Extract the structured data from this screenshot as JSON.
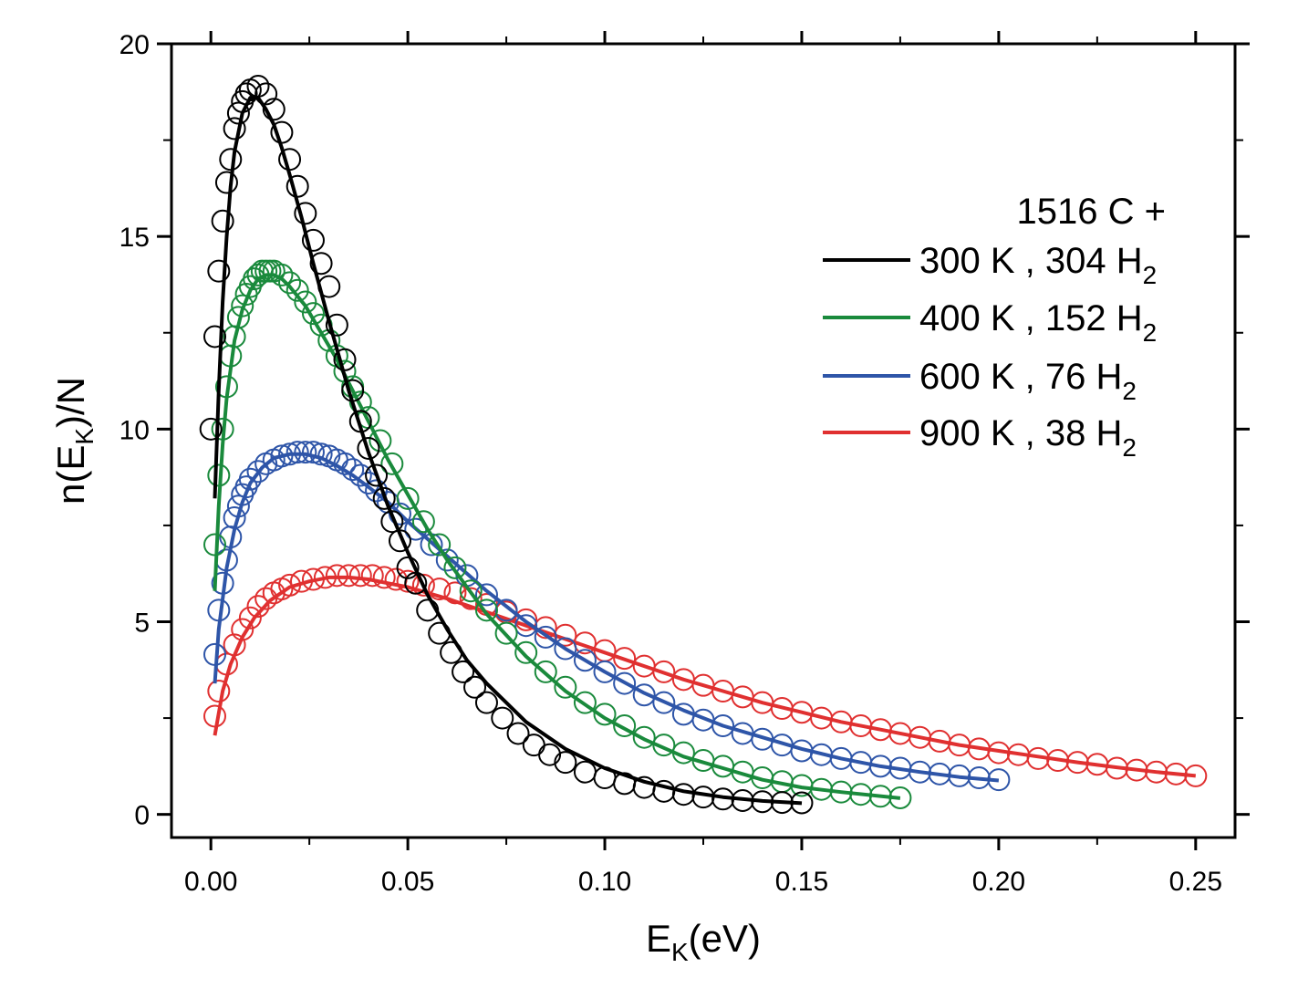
{
  "chart_data": {
    "type": "scatter",
    "title": "",
    "xlabel": {
      "main": "E",
      "sub": "K",
      "rest": "(eV)"
    },
    "ylabel": {
      "pre": "n(E",
      "sub": "K",
      "post": ")/N"
    },
    "xlim": [
      -0.01,
      0.26
    ],
    "ylim": [
      -0.6,
      20
    ],
    "xticks": [
      0.0,
      0.05,
      0.1,
      0.15,
      0.2,
      0.25
    ],
    "xtick_labels": [
      "0.00",
      "0.05",
      "0.10",
      "0.15",
      "0.20",
      "0.25"
    ],
    "yticks": [
      0,
      5,
      10,
      15,
      20
    ],
    "ytick_labels": [
      "0",
      "5",
      "10",
      "15",
      "20"
    ],
    "grid": false,
    "legend_placement": "top-right",
    "legend_title": "1516 C +",
    "series": [
      {
        "name": "300 K , 304 H",
        "name_sub": "2",
        "color": "#000000",
        "x": [
          0.0,
          0.001,
          0.002,
          0.003,
          0.004,
          0.005,
          0.006,
          0.007,
          0.008,
          0.009,
          0.01,
          0.012,
          0.014,
          0.016,
          0.018,
          0.02,
          0.022,
          0.024,
          0.026,
          0.028,
          0.03,
          0.032,
          0.034,
          0.036,
          0.038,
          0.04,
          0.042,
          0.044,
          0.046,
          0.048,
          0.05,
          0.052,
          0.055,
          0.058,
          0.061,
          0.064,
          0.067,
          0.07,
          0.074,
          0.078,
          0.082,
          0.086,
          0.09,
          0.095,
          0.1,
          0.105,
          0.11,
          0.115,
          0.12,
          0.125,
          0.13,
          0.135,
          0.14,
          0.145,
          0.15
        ],
        "y": [
          10.0,
          12.4,
          14.1,
          15.4,
          16.4,
          17.0,
          17.8,
          18.2,
          18.5,
          18.7,
          18.8,
          18.9,
          18.7,
          18.3,
          17.7,
          17.0,
          16.3,
          15.6,
          14.9,
          14.3,
          13.7,
          12.7,
          11.8,
          11.0,
          10.2,
          9.5,
          8.8,
          8.2,
          7.6,
          7.1,
          6.4,
          6.0,
          5.3,
          4.7,
          4.2,
          3.7,
          3.3,
          2.9,
          2.5,
          2.1,
          1.8,
          1.55,
          1.35,
          1.1,
          0.95,
          0.8,
          0.7,
          0.6,
          0.52,
          0.45,
          0.4,
          0.36,
          0.33,
          0.31,
          0.3
        ],
        "fit_x": [
          0.001,
          0.002,
          0.003,
          0.004,
          0.005,
          0.006,
          0.008,
          0.01,
          0.012,
          0.014,
          0.016,
          0.018,
          0.02,
          0.023,
          0.026,
          0.03,
          0.035,
          0.04,
          0.045,
          0.05,
          0.055,
          0.06,
          0.065,
          0.07,
          0.08,
          0.09,
          0.1,
          0.11,
          0.12,
          0.13,
          0.14,
          0.15
        ],
        "fit_y": [
          8.2,
          11.0,
          13.3,
          15.0,
          16.3,
          17.2,
          18.2,
          18.6,
          18.6,
          18.3,
          17.9,
          17.3,
          16.6,
          15.5,
          14.3,
          12.8,
          11.0,
          9.4,
          8.0,
          6.8,
          5.7,
          4.8,
          4.0,
          3.4,
          2.4,
          1.7,
          1.2,
          0.85,
          0.6,
          0.45,
          0.35,
          0.29
        ]
      },
      {
        "name": "400 K , 152 H",
        "name_sub": "2",
        "color": "#1a8a3c",
        "x": [
          0.001,
          0.002,
          0.003,
          0.004,
          0.005,
          0.006,
          0.007,
          0.008,
          0.009,
          0.01,
          0.011,
          0.012,
          0.013,
          0.014,
          0.015,
          0.016,
          0.018,
          0.02,
          0.022,
          0.024,
          0.026,
          0.028,
          0.03,
          0.032,
          0.034,
          0.036,
          0.038,
          0.04,
          0.043,
          0.046,
          0.05,
          0.054,
          0.058,
          0.062,
          0.066,
          0.07,
          0.075,
          0.08,
          0.085,
          0.09,
          0.095,
          0.1,
          0.105,
          0.11,
          0.115,
          0.12,
          0.125,
          0.13,
          0.135,
          0.14,
          0.145,
          0.15,
          0.155,
          0.16,
          0.165,
          0.17,
          0.175
        ],
        "y": [
          7.0,
          8.8,
          10.0,
          11.1,
          11.9,
          12.4,
          12.9,
          13.2,
          13.5,
          13.7,
          13.9,
          14.0,
          14.1,
          14.1,
          14.1,
          14.1,
          14.0,
          13.8,
          13.6,
          13.3,
          13.0,
          12.7,
          12.3,
          11.9,
          11.5,
          11.1,
          10.7,
          10.3,
          9.7,
          9.1,
          8.2,
          7.6,
          7.0,
          6.4,
          5.8,
          5.3,
          4.7,
          4.2,
          3.7,
          3.3,
          2.9,
          2.6,
          2.3,
          2.0,
          1.8,
          1.6,
          1.4,
          1.25,
          1.1,
          0.95,
          0.85,
          0.75,
          0.65,
          0.58,
          0.52,
          0.47,
          0.43
        ],
        "fit_x": [
          0.001,
          0.002,
          0.003,
          0.004,
          0.006,
          0.008,
          0.01,
          0.012,
          0.014,
          0.016,
          0.018,
          0.02,
          0.024,
          0.028,
          0.032,
          0.036,
          0.04,
          0.045,
          0.05,
          0.055,
          0.06,
          0.065,
          0.07,
          0.08,
          0.09,
          0.1,
          0.11,
          0.12,
          0.13,
          0.14,
          0.15,
          0.16,
          0.175
        ],
        "fit_y": [
          5.8,
          8.0,
          9.6,
          10.8,
          12.3,
          13.1,
          13.6,
          13.9,
          14.0,
          14.0,
          13.9,
          13.7,
          13.2,
          12.5,
          11.8,
          11.0,
          10.2,
          9.2,
          8.3,
          7.4,
          6.6,
          5.9,
          5.2,
          4.1,
          3.2,
          2.5,
          1.95,
          1.5,
          1.2,
          0.9,
          0.7,
          0.58,
          0.42
        ]
      },
      {
        "name": "600 K , 76 H",
        "name_sub": "2",
        "color": "#2e55a8",
        "x": [
          0.001,
          0.002,
          0.003,
          0.004,
          0.005,
          0.006,
          0.007,
          0.008,
          0.009,
          0.01,
          0.012,
          0.014,
          0.016,
          0.018,
          0.02,
          0.022,
          0.024,
          0.026,
          0.028,
          0.03,
          0.032,
          0.034,
          0.036,
          0.038,
          0.04,
          0.042,
          0.045,
          0.048,
          0.052,
          0.056,
          0.06,
          0.065,
          0.07,
          0.075,
          0.08,
          0.085,
          0.09,
          0.095,
          0.1,
          0.105,
          0.11,
          0.115,
          0.12,
          0.125,
          0.13,
          0.135,
          0.14,
          0.145,
          0.15,
          0.155,
          0.16,
          0.165,
          0.17,
          0.175,
          0.18,
          0.185,
          0.19,
          0.195,
          0.2
        ],
        "y": [
          4.15,
          5.3,
          6.0,
          6.6,
          7.2,
          7.7,
          8.0,
          8.3,
          8.5,
          8.7,
          8.9,
          9.1,
          9.2,
          9.3,
          9.35,
          9.4,
          9.4,
          9.4,
          9.35,
          9.3,
          9.2,
          9.1,
          8.95,
          8.8,
          8.6,
          8.4,
          8.1,
          7.8,
          7.4,
          7.0,
          6.6,
          6.2,
          5.7,
          5.3,
          4.9,
          4.6,
          4.3,
          4.0,
          3.7,
          3.4,
          3.1,
          2.9,
          2.6,
          2.45,
          2.3,
          2.1,
          1.95,
          1.8,
          1.65,
          1.55,
          1.45,
          1.35,
          1.25,
          1.2,
          1.1,
          1.05,
          1.0,
          0.95,
          0.9
        ],
        "fit_x": [
          0.001,
          0.002,
          0.004,
          0.006,
          0.008,
          0.01,
          0.013,
          0.016,
          0.02,
          0.024,
          0.028,
          0.032,
          0.036,
          0.04,
          0.045,
          0.05,
          0.06,
          0.07,
          0.08,
          0.09,
          0.1,
          0.11,
          0.12,
          0.13,
          0.14,
          0.15,
          0.16,
          0.17,
          0.18,
          0.19,
          0.2
        ],
        "fit_y": [
          3.4,
          4.8,
          6.4,
          7.4,
          8.1,
          8.6,
          9.0,
          9.25,
          9.35,
          9.35,
          9.25,
          9.05,
          8.8,
          8.5,
          8.1,
          7.6,
          6.7,
          5.8,
          5.0,
          4.3,
          3.7,
          3.15,
          2.7,
          2.3,
          2.0,
          1.7,
          1.45,
          1.25,
          1.1,
          0.97,
          0.88
        ]
      },
      {
        "name": "900 K , 38 H",
        "name_sub": "2",
        "color": "#e03030",
        "x": [
          0.001,
          0.002,
          0.004,
          0.006,
          0.008,
          0.01,
          0.012,
          0.014,
          0.016,
          0.018,
          0.02,
          0.023,
          0.026,
          0.029,
          0.032,
          0.035,
          0.038,
          0.041,
          0.044,
          0.047,
          0.05,
          0.054,
          0.058,
          0.062,
          0.066,
          0.07,
          0.075,
          0.08,
          0.085,
          0.09,
          0.095,
          0.1,
          0.105,
          0.11,
          0.115,
          0.12,
          0.125,
          0.13,
          0.135,
          0.14,
          0.145,
          0.15,
          0.155,
          0.16,
          0.165,
          0.17,
          0.175,
          0.18,
          0.185,
          0.19,
          0.195,
          0.2,
          0.205,
          0.21,
          0.215,
          0.22,
          0.225,
          0.23,
          0.235,
          0.24,
          0.245,
          0.25
        ],
        "y": [
          2.55,
          3.2,
          3.9,
          4.4,
          4.8,
          5.1,
          5.4,
          5.6,
          5.75,
          5.85,
          5.95,
          6.05,
          6.1,
          6.15,
          6.2,
          6.2,
          6.2,
          6.2,
          6.15,
          6.1,
          6.05,
          5.95,
          5.85,
          5.75,
          5.6,
          5.45,
          5.25,
          5.05,
          4.85,
          4.65,
          4.45,
          4.25,
          4.05,
          3.85,
          3.7,
          3.5,
          3.35,
          3.2,
          3.05,
          2.9,
          2.75,
          2.65,
          2.5,
          2.4,
          2.3,
          2.2,
          2.1,
          2.0,
          1.9,
          1.8,
          1.7,
          1.6,
          1.55,
          1.45,
          1.4,
          1.35,
          1.3,
          1.2,
          1.15,
          1.1,
          1.05,
          1.0
        ],
        "fit_x": [
          0.001,
          0.003,
          0.005,
          0.008,
          0.011,
          0.015,
          0.02,
          0.025,
          0.03,
          0.035,
          0.04,
          0.045,
          0.05,
          0.06,
          0.07,
          0.08,
          0.09,
          0.1,
          0.11,
          0.12,
          0.13,
          0.14,
          0.15,
          0.16,
          0.17,
          0.18,
          0.19,
          0.2,
          0.21,
          0.22,
          0.23,
          0.24,
          0.25
        ],
        "fit_y": [
          2.05,
          3.2,
          3.9,
          4.6,
          5.1,
          5.55,
          5.9,
          6.05,
          6.15,
          6.15,
          6.1,
          6.0,
          5.9,
          5.6,
          5.25,
          4.9,
          4.55,
          4.2,
          3.85,
          3.5,
          3.2,
          2.9,
          2.65,
          2.4,
          2.2,
          2.0,
          1.8,
          1.65,
          1.5,
          1.35,
          1.22,
          1.1,
          1.0
        ]
      }
    ]
  }
}
